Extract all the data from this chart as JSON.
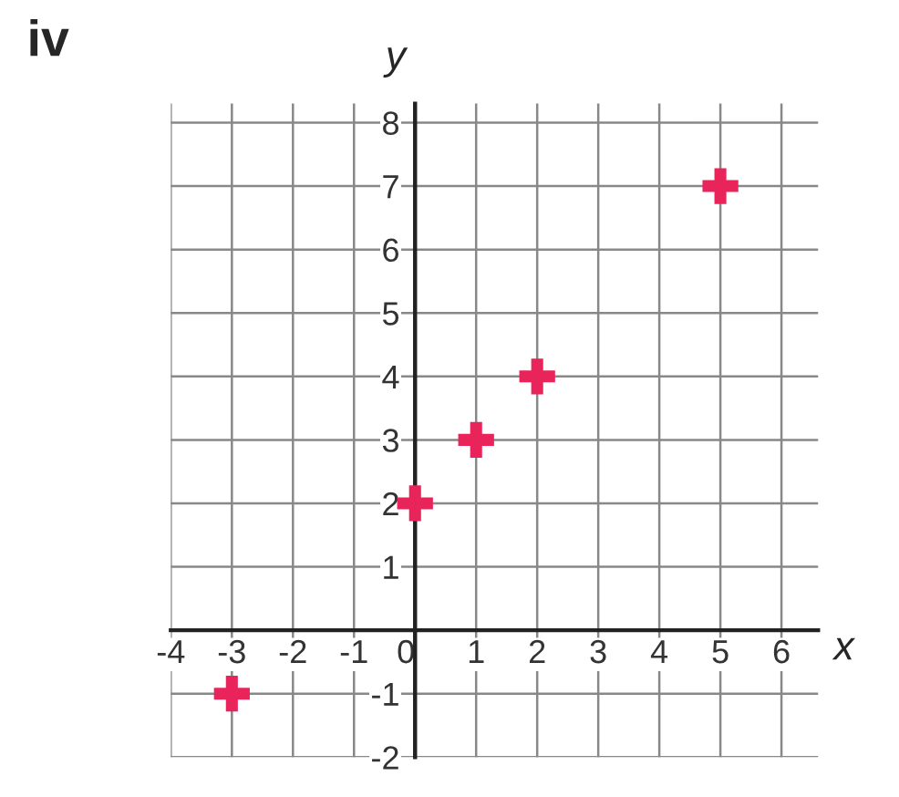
{
  "chart_data": {
    "type": "scatter",
    "title": "iv",
    "xlabel": "x",
    "ylabel": "y",
    "x": [
      -3,
      0,
      1,
      2,
      5
    ],
    "series": [
      {
        "color": "#e8245a",
        "values": [
          -1,
          2,
          3,
          4,
          7
        ]
      }
    ],
    "marker": "cross",
    "grid": true,
    "xlim": [
      -4,
      6.6
    ],
    "ylim": [
      -2,
      8.3
    ],
    "xticks": [
      -4,
      -3,
      -2,
      -1,
      0,
      1,
      2,
      3,
      4,
      5,
      6
    ],
    "yticks": [
      -2,
      -1,
      {
        "value": 0,
        "label": null
      },
      1,
      2,
      3,
      4,
      5,
      6,
      7,
      8
    ]
  }
}
